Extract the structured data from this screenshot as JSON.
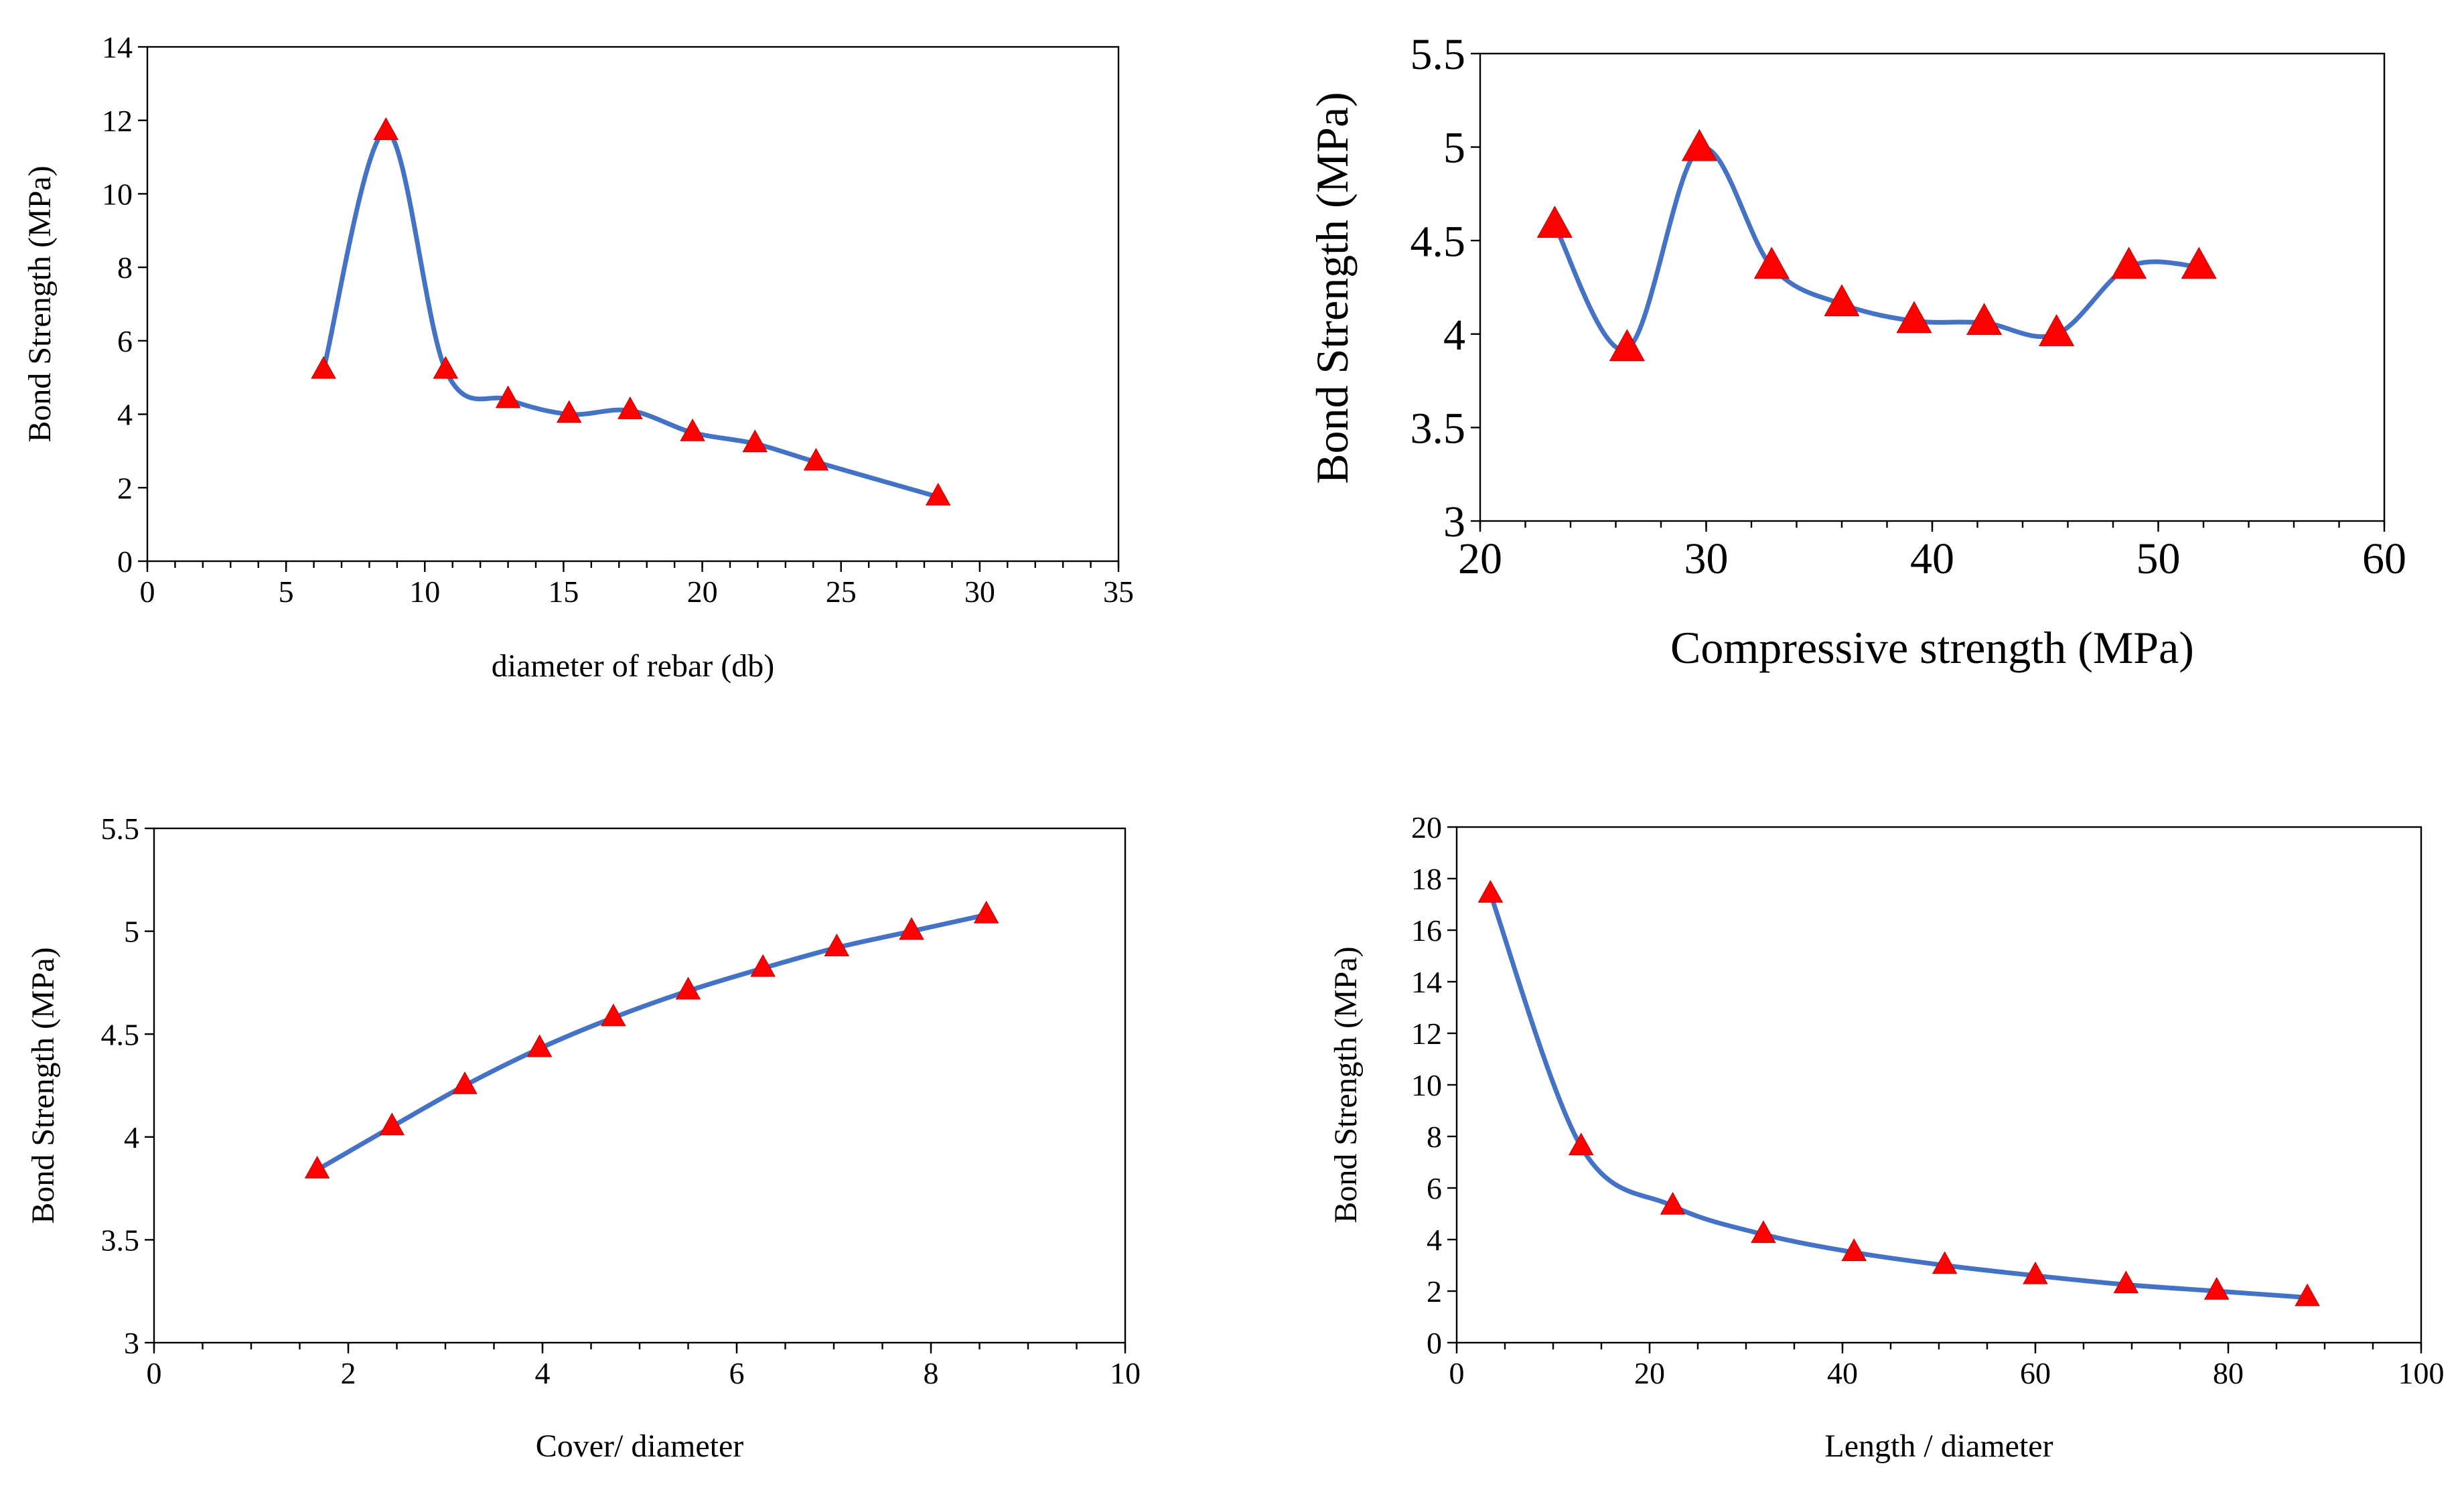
{
  "chart_data": [
    {
      "type": "scatter",
      "id": "chart-diameter",
      "title": "",
      "xlabel": "diameter of rebar (db)",
      "ylabel": "Bond Strength (MPa)",
      "xlim": [
        0,
        35
      ],
      "ylim": [
        0,
        14
      ],
      "xticks": [
        0,
        5,
        10,
        15,
        20,
        25,
        30,
        35
      ],
      "yticks": [
        0,
        2,
        4,
        6,
        8,
        10,
        12,
        14
      ],
      "x_minor_step": 1,
      "series": [
        {
          "name": "Bond Strength",
          "x": [
            6.35,
            8.6,
            10.75,
            13.0,
            15.2,
            17.4,
            19.65,
            21.9,
            24.1,
            28.5
          ],
          "y": [
            5.2,
            11.7,
            5.2,
            4.4,
            4.0,
            4.1,
            3.5,
            3.2,
            2.7,
            1.75
          ]
        }
      ]
    },
    {
      "type": "scatter",
      "id": "chart-compressive",
      "title": "",
      "xlabel": "Compressive strength (MPa)",
      "ylabel": "Bond Strength (MPa)",
      "xlim": [
        20,
        60
      ],
      "ylim": [
        3,
        5.5
      ],
      "xticks": [
        20,
        30,
        40,
        50,
        60
      ],
      "yticks": [
        3,
        3.5,
        4,
        4.5,
        5,
        5.5
      ],
      "x_minor_step": 2,
      "series": [
        {
          "name": "Bond Strength",
          "x": [
            23.3,
            26.5,
            29.7,
            32.9,
            36.0,
            39.2,
            42.3,
            45.5,
            48.7,
            51.8
          ],
          "y": [
            4.58,
            3.92,
            4.99,
            4.36,
            4.16,
            4.07,
            4.06,
            4.0,
            4.36,
            4.36
          ]
        }
      ]
    },
    {
      "type": "scatter",
      "id": "chart-cover",
      "title": "",
      "xlabel": "Cover/ diameter",
      "ylabel": "Bond Strength (MPa)",
      "xlim": [
        0,
        10
      ],
      "ylim": [
        3,
        5.5
      ],
      "xticks": [
        0,
        2,
        4,
        6,
        8,
        10
      ],
      "yticks": [
        3,
        3.5,
        4,
        4.5,
        5,
        5.5
      ],
      "x_minor_step": 0.5,
      "series": [
        {
          "name": "Bond Strength",
          "x": [
            1.68,
            2.45,
            3.2,
            3.97,
            4.73,
            5.5,
            6.27,
            7.03,
            7.8,
            8.57
          ],
          "y": [
            3.84,
            4.05,
            4.25,
            4.43,
            4.58,
            4.71,
            4.82,
            4.92,
            5.0,
            5.08
          ]
        }
      ]
    },
    {
      "type": "scatter",
      "id": "chart-length",
      "title": "",
      "xlabel": "Length / diameter",
      "ylabel": "Bond Strength (MPa)",
      "xlim": [
        0,
        100
      ],
      "ylim": [
        0,
        20
      ],
      "xticks": [
        0,
        20,
        40,
        60,
        80,
        100
      ],
      "yticks": [
        0,
        2,
        4,
        6,
        8,
        10,
        12,
        14,
        16,
        18,
        20
      ],
      "x_minor_step": 5,
      "series": [
        {
          "name": "Bond Strength",
          "x": [
            3.5,
            12.9,
            22.4,
            31.8,
            41.2,
            50.6,
            60.0,
            69.4,
            78.8,
            88.2
          ],
          "y": [
            17.4,
            7.6,
            5.3,
            4.2,
            3.5,
            3.0,
            2.6,
            2.25,
            2.0,
            1.75
          ]
        }
      ]
    }
  ],
  "colors": {
    "line": "#4472c4",
    "marker": "#ff0000",
    "axis": "#000000"
  }
}
